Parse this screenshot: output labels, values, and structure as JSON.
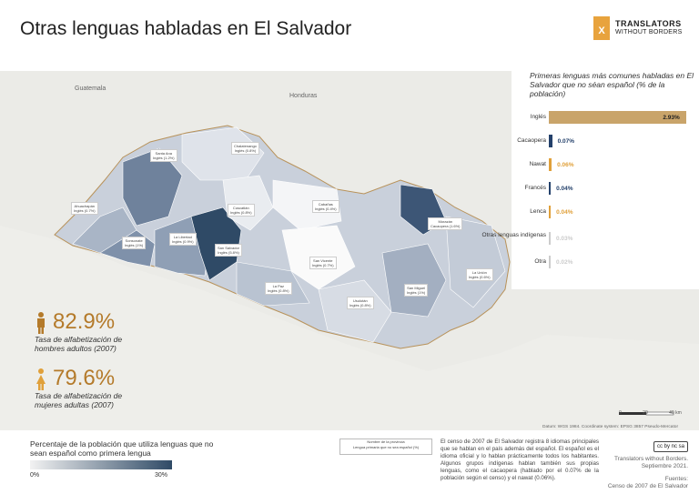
{
  "title": "Otras lenguas habladas en El Salvador",
  "logo": {
    "name": "TRANSLATORS",
    "sub": "WITHOUT BORDERS",
    "mark": "X"
  },
  "map": {
    "countries": {
      "guatemala": "Guatemala",
      "honduras": "Honduras"
    },
    "departments": [
      {
        "name": "Santa Ana",
        "value": "Inglés (1.2%)"
      },
      {
        "name": "Chalatenango",
        "value": "Inglés (0.8%)"
      },
      {
        "name": "Ahuachapán",
        "value": "Inglés (0.7%)"
      },
      {
        "name": "Sonsonate",
        "value": "Inglés (1%)"
      },
      {
        "name": "La Libertad",
        "value": "Inglés (0.9%)"
      },
      {
        "name": "Cuscatlán",
        "value": "Inglés (0.8%)"
      },
      {
        "name": "San Salvador",
        "value": "Inglés (5.8%)"
      },
      {
        "name": "Cabañas",
        "value": "Inglés (0.4%)"
      },
      {
        "name": "San Vicente",
        "value": "Inglés (0.7%)"
      },
      {
        "name": "La Paz",
        "value": "Inglés (0.8%)"
      },
      {
        "name": "Usulután",
        "value": "Inglés (0.8%)"
      },
      {
        "name": "San Miguel",
        "value": "Inglés (1%)"
      },
      {
        "name": "Morazán",
        "value": "Cacaopera (1.6%)"
      },
      {
        "name": "La Unión",
        "value": "Inglés (0.6%)"
      }
    ],
    "datum": "Datum: WGS 1984. Coordinate system: EPSG 3857 Pseudo-Mercator",
    "scale": {
      "start": "0",
      "mid": "20",
      "end": "40 km"
    }
  },
  "panel": {
    "title": "Primeras lenguas más comunes habladas en El Salvador que no séan español (% de la población)",
    "colors": {
      "gold": "#c9a46a",
      "navy": "#24416b",
      "orange": "#e0a03a",
      "grey": "#cccccc"
    }
  },
  "chart_data": {
    "type": "bar",
    "title": "Primeras lenguas más comunes habladas en El Salvador que no séan español (% de la población)",
    "categories": [
      "Inglés",
      "Cacaopera",
      "Nawat",
      "Francés",
      "Lenca",
      "Otras lenguas indígenas",
      "Otra"
    ],
    "values": [
      2.93,
      0.07,
      0.06,
      0.04,
      0.04,
      0.03,
      0.02
    ],
    "value_labels": [
      "2.93%",
      "0.07%",
      "0.06%",
      "0.04%",
      "0.04%",
      "0.03%",
      "0.02%"
    ],
    "xlim": [
      0,
      3
    ]
  },
  "stats": [
    {
      "value": "82.9%",
      "desc": "Tasa de alfabetización de hombres adultos (2007)"
    },
    {
      "value": "79.6%",
      "desc": "Tasa de alfabetización de mujeres adultas (2007)"
    }
  ],
  "legend": {
    "title": "Percentaje de la población que utiliza lenguas que no sean español como primera lengua",
    "min": "0%",
    "max": "30%",
    "colors": {
      "low": "#f2f2f2",
      "high": "#2f4a66"
    },
    "key_line1": "Nombre de la provincia",
    "key_line2": "Lengua primaria que no sea español (%)"
  },
  "census_text": "El censo de 2007 de El Salvador registra 8 idiomas principales que se hablan en el país además del español. El español es el idioma oficial y lo hablan prácticamente todos los habitantes. Algunos grupos indígenas hablan también sus propias lenguas, como el cacaopera (hablado por el 0.07% de la población según el censo) y el nawat (0.06%).",
  "credit": {
    "license": "cc by nc sa",
    "org": "Translators without Borders.",
    "date": "Septiembre 2021.",
    "fuentes": "Fuentes:",
    "source": "Censo de 2007 de El Salvador"
  }
}
